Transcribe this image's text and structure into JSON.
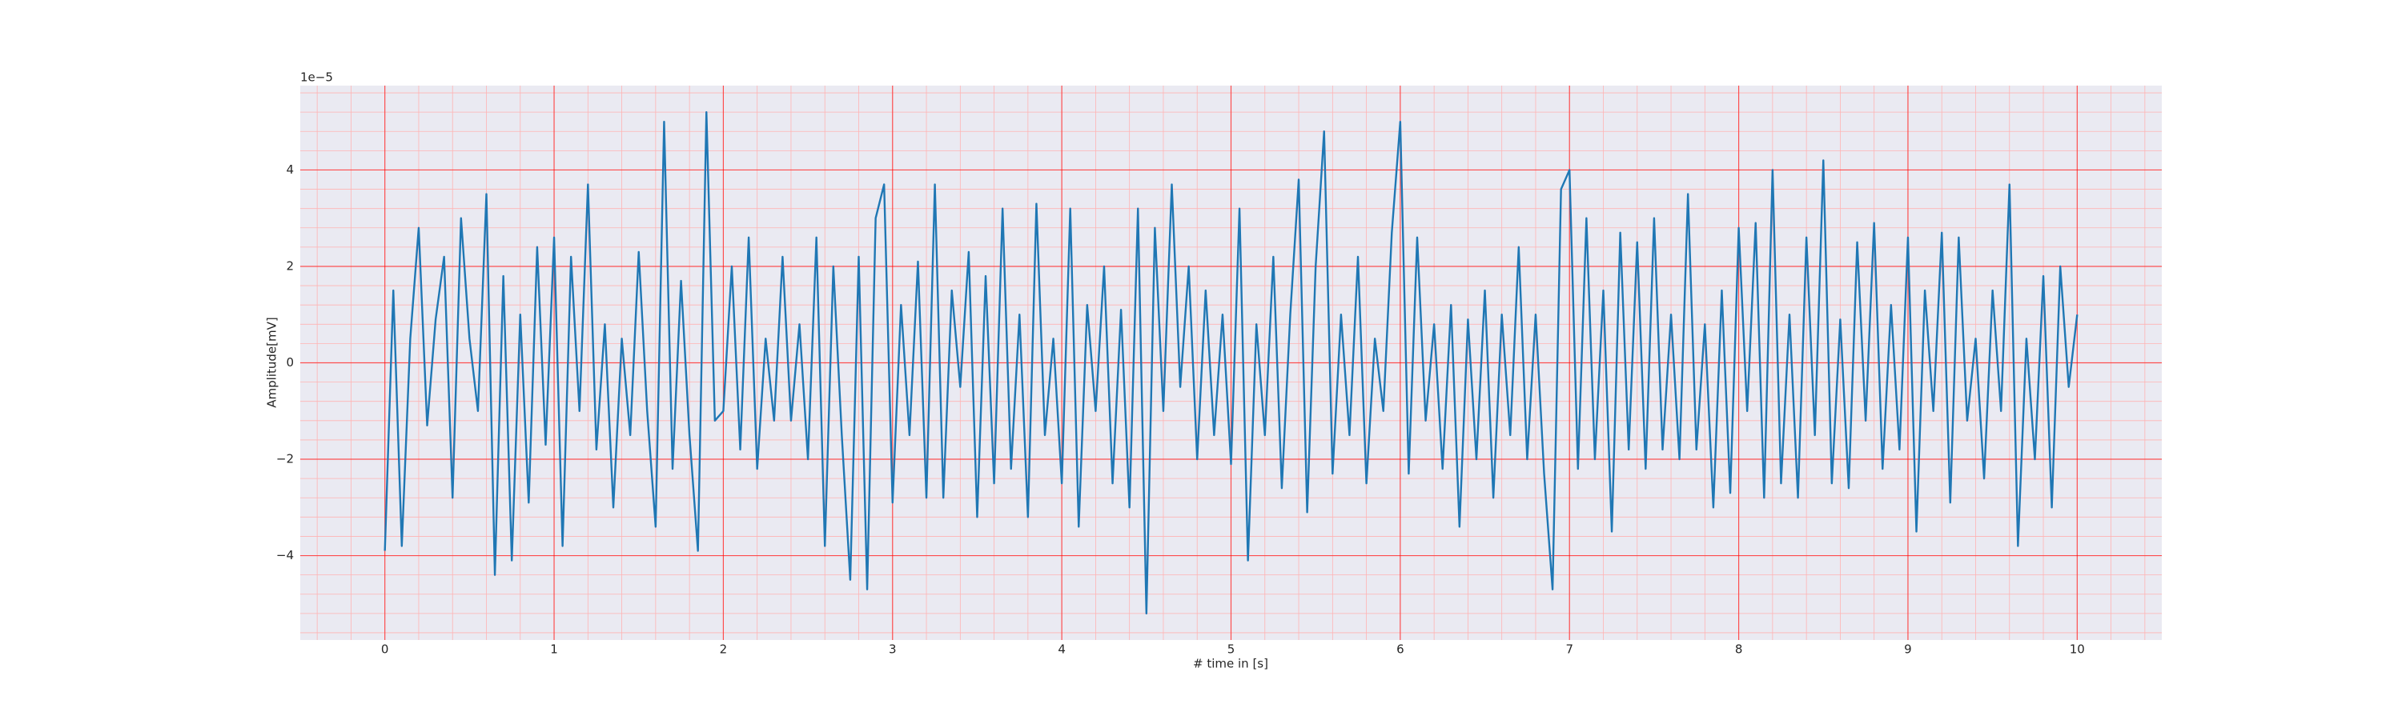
{
  "chart_data": {
    "type": "line",
    "xlabel": "# time in [s]",
    "ylabel": "Amplitude[mV]",
    "y_offset_label": "1e−5",
    "x": [
      0,
      0.05,
      0.1,
      0.15,
      0.2,
      0.25,
      0.3,
      0.35,
      0.4,
      0.45,
      0.5,
      0.55,
      0.6,
      0.65,
      0.7,
      0.75,
      0.8,
      0.85,
      0.9,
      0.95,
      1,
      1.05,
      1.1,
      1.15,
      1.2,
      1.25,
      1.3,
      1.35,
      1.4,
      1.45,
      1.5,
      1.55,
      1.6,
      1.65,
      1.7,
      1.75,
      1.8,
      1.85,
      1.9,
      1.95,
      2,
      2.05,
      2.1,
      2.15,
      2.2,
      2.25,
      2.3,
      2.35,
      2.4,
      2.45,
      2.5,
      2.55,
      2.6,
      2.65,
      2.7,
      2.75,
      2.8,
      2.85,
      2.9,
      2.95,
      3,
      3.05,
      3.1,
      3.15,
      3.2,
      3.25,
      3.3,
      3.35,
      3.4,
      3.45,
      3.5,
      3.55,
      3.6,
      3.65,
      3.7,
      3.75,
      3.8,
      3.85,
      3.9,
      3.95,
      4,
      4.05,
      4.1,
      4.15,
      4.2,
      4.25,
      4.3,
      4.35,
      4.4,
      4.45,
      4.5,
      4.55,
      4.6,
      4.65,
      4.7,
      4.75,
      4.8,
      4.85,
      4.9,
      4.95,
      5,
      5.05,
      5.1,
      5.15,
      5.2,
      5.25,
      5.3,
      5.35,
      5.4,
      5.45,
      5.5,
      5.55,
      5.6,
      5.65,
      5.7,
      5.75,
      5.8,
      5.85,
      5.9,
      5.95,
      6,
      6.05,
      6.1,
      6.15,
      6.2,
      6.25,
      6.3,
      6.35,
      6.4,
      6.45,
      6.5,
      6.55,
      6.6,
      6.65,
      6.7,
      6.75,
      6.8,
      6.85,
      6.9,
      6.95,
      7,
      7.05,
      7.1,
      7.15,
      7.2,
      7.25,
      7.3,
      7.35,
      7.4,
      7.45,
      7.5,
      7.55,
      7.6,
      7.65,
      7.7,
      7.75,
      7.8,
      7.85,
      7.9,
      7.95,
      8,
      8.05,
      8.1,
      8.15,
      8.2,
      8.25,
      8.3,
      8.35,
      8.4,
      8.45,
      8.5,
      8.55,
      8.6,
      8.65,
      8.7,
      8.75,
      8.8,
      8.85,
      8.9,
      8.95,
      9,
      9.05,
      9.1,
      9.15,
      9.2,
      9.25,
      9.3,
      9.35,
      9.4,
      9.45,
      9.5,
      9.55,
      9.6,
      9.65,
      9.7,
      9.75,
      9.8,
      9.85,
      9.9,
      9.95,
      10
    ],
    "series": [
      {
        "color": "#1f77b4",
        "values": [
          -3.9,
          1.5,
          -3.8,
          0.5,
          2.8,
          -1.3,
          0.9,
          2.2,
          -2.8,
          3.0,
          0.5,
          -1.0,
          3.5,
          -4.4,
          1.8,
          -4.1,
          1.0,
          -2.9,
          2.4,
          -1.7,
          2.6,
          -3.8,
          2.2,
          -1.0,
          3.7,
          -1.8,
          0.8,
          -3.0,
          0.5,
          -1.5,
          2.3,
          -1.0,
          -3.4,
          5.0,
          -2.2,
          1.7,
          -1.5,
          -3.9,
          5.2,
          -1.2,
          -1.0,
          2.0,
          -1.8,
          2.6,
          -2.2,
          0.5,
          -1.2,
          2.2,
          -1.2,
          0.8,
          -2.0,
          2.6,
          -3.8,
          2.0,
          -1.5,
          -4.5,
          2.2,
          -4.7,
          3.0,
          3.7,
          -2.9,
          1.2,
          -1.5,
          2.1,
          -2.8,
          3.7,
          -2.8,
          1.5,
          -0.5,
          2.3,
          -3.2,
          1.8,
          -2.5,
          3.2,
          -2.2,
          1.0,
          -3.2,
          3.3,
          -1.5,
          0.5,
          -2.5,
          3.2,
          -3.4,
          1.2,
          -1.0,
          2.0,
          -2.5,
          1.1,
          -3.0,
          3.2,
          -5.2,
          2.8,
          -1.0,
          3.7,
          -0.5,
          2.0,
          -2.0,
          1.5,
          -1.5,
          1.0,
          -2.1,
          3.2,
          -4.1,
          0.8,
          -1.5,
          2.2,
          -2.6,
          1.0,
          3.8,
          -3.1,
          2.0,
          4.8,
          -2.3,
          1.0,
          -1.5,
          2.2,
          -2.5,
          0.5,
          -1.0,
          2.7,
          5.0,
          -2.3,
          2.6,
          -1.2,
          0.8,
          -2.2,
          1.2,
          -3.4,
          0.9,
          -2.0,
          1.5,
          -2.8,
          1.0,
          -1.5,
          2.4,
          -2.0,
          1.0,
          -2.3,
          -4.7,
          3.6,
          4.0,
          -2.2,
          3.0,
          -2.0,
          1.5,
          -3.5,
          2.7,
          -1.8,
          2.5,
          -2.2,
          3.0,
          -1.8,
          1.0,
          -2.0,
          3.5,
          -1.8,
          0.8,
          -3.0,
          1.5,
          -2.7,
          2.8,
          -1.0,
          2.9,
          -2.8,
          4.0,
          -2.5,
          1.0,
          -2.8,
          2.6,
          -1.5,
          4.2,
          -2.5,
          0.9,
          -2.6,
          2.5,
          -1.2,
          2.9,
          -2.2,
          1.2,
          -1.8,
          2.6,
          -3.5,
          1.5,
          -1.0,
          2.7,
          -2.9,
          2.6,
          -1.2,
          0.5,
          -2.4,
          1.5,
          -1.0,
          3.7,
          -3.8,
          0.5,
          -2.0,
          1.8,
          -3.0,
          2.0,
          -0.5,
          1.0
        ]
      }
    ],
    "xlim": [
      -0.5,
      10.5
    ],
    "ylim": [
      -5.75,
      5.75
    ],
    "xticks": [
      0,
      1,
      2,
      3,
      4,
      5,
      6,
      7,
      8,
      9,
      10
    ],
    "yticks": [
      {
        "value": -4,
        "label": "−4"
      },
      {
        "value": -2,
        "label": "−2"
      },
      0,
      2,
      4
    ],
    "grid": true,
    "grid_color": "#ff0000",
    "minor_grid_color": "#ffb3b3",
    "minor_divisions": 5,
    "background": "#eaeaf2"
  }
}
